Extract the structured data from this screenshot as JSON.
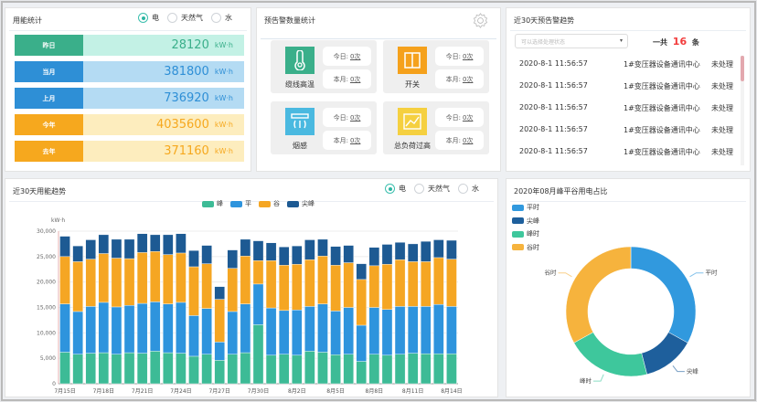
{
  "energy": {
    "title": "用能统计",
    "radios": [
      "电",
      "天然气",
      "水"
    ],
    "selected": "电",
    "rows": [
      {
        "label": "昨日",
        "value": "28120",
        "unit": "kW·h",
        "label_color": "#3aaf8a",
        "bg": "#c3f1e5",
        "color": "#3aaf8a"
      },
      {
        "label": "当月",
        "value": "381800",
        "unit": "kW·h",
        "label_color": "#2e8fd6",
        "bg": "#b4dbf3",
        "color": "#2e8fd6"
      },
      {
        "label": "上月",
        "value": "736920",
        "unit": "kW·h",
        "label_color": "#2e8fd6",
        "bg": "#b4dbf3",
        "color": "#2e8fd6"
      },
      {
        "label": "今年",
        "value": "4035600",
        "unit": "kW·h",
        "label_color": "#f6a81e",
        "bg": "#fdedbe",
        "color": "#f6a81e"
      },
      {
        "label": "去年",
        "value": "371160",
        "unit": "kW·h",
        "label_color": "#f6a81e",
        "bg": "#fdedbe",
        "color": "#f6a81e"
      }
    ]
  },
  "alarm_stats": {
    "title": "预告警数量统计",
    "today_label": "今日:",
    "month_label": "本月:",
    "cards": [
      {
        "name": "缆线高温",
        "icon": "thermometer-icon",
        "color": "#3aaf8a",
        "today": "0次",
        "month": "0次"
      },
      {
        "name": "开关",
        "icon": "switch-icon",
        "color": "#f5a11c",
        "today": "0次",
        "month": "0次"
      },
      {
        "name": "烟感",
        "icon": "smoke-detector-icon",
        "color": "#4ab9e0",
        "today": "0次",
        "month": "0次"
      },
      {
        "name": "总负荷过高",
        "icon": "load-chart-icon",
        "color": "#f5d040",
        "today": "0次",
        "month": "0次"
      }
    ]
  },
  "alarm_trend": {
    "title": "近30天预告警趋势",
    "select_placeholder": "可以选择处理状态",
    "total_prefix": "一共",
    "total": "16",
    "total_suffix": "条",
    "rows": [
      {
        "time": "2020-8-1 11:56:57",
        "device": "1#变压器设备通讯中心",
        "status": "未处理"
      },
      {
        "time": "2020-8-1 11:56:57",
        "device": "1#变压器设备通讯中心",
        "status": "未处理"
      },
      {
        "time": "2020-8-1 11:56:57",
        "device": "1#变压器设备通讯中心",
        "status": "未处理"
      },
      {
        "time": "2020-8-1 11:56:57",
        "device": "1#变压器设备通讯中心",
        "status": "未处理"
      },
      {
        "time": "2020-8-1 11:56:57",
        "device": "1#变压器设备通讯中心",
        "status": "未处理"
      }
    ]
  },
  "trend": {
    "title": "近30天用能趋势",
    "radios": [
      "电",
      "天然气",
      "水"
    ],
    "selected": "电"
  },
  "ratio": {
    "title": "2020年08月峰平谷用电占比"
  },
  "chart_data": [
    {
      "type": "bar",
      "stacked": true,
      "ylabel": "kW·h",
      "ylim": [
        0,
        30000
      ],
      "yticks": [
        "0",
        "5,000",
        "10,000",
        "15,000",
        "20,000",
        "25,000",
        "30,000"
      ],
      "grid": true,
      "legend_placement": "top",
      "categories": [
        "7月15日",
        "7月16日",
        "7月17日",
        "7月18日",
        "7月19日",
        "7月20日",
        "7月21日",
        "7月22日",
        "7月23日",
        "7月24日",
        "7月25日",
        "7月26日",
        "7月27日",
        "7月28日",
        "7月29日",
        "7月30日",
        "7月31日",
        "8月1日",
        "8月2日",
        "8月3日",
        "8月4日",
        "8月5日",
        "8月6日",
        "8月7日",
        "8月8日",
        "8月9日",
        "8月10日",
        "8月11日",
        "8月12日",
        "8月13日",
        "8月14日"
      ],
      "xtick_labels": [
        "7月15日",
        "7月18日",
        "7月21日",
        "7月24日",
        "7月27日",
        "7月30日",
        "8月2日",
        "8月5日",
        "8月8日",
        "8月11日",
        "8月14日"
      ],
      "series": [
        {
          "name": "峰",
          "color": "#3dbb96",
          "values": [
            6200,
            5800,
            6000,
            6100,
            5800,
            6100,
            6000,
            6400,
            6100,
            6000,
            5400,
            5800,
            4600,
            5800,
            6100,
            11600,
            5600,
            5800,
            5600,
            6400,
            6200,
            5700,
            5800,
            4400,
            5800,
            5600,
            5800,
            6000,
            5900,
            5900,
            5900
          ]
        },
        {
          "name": "平",
          "color": "#2e94dd",
          "values": [
            9500,
            8400,
            9200,
            9900,
            9300,
            9300,
            9800,
            9700,
            9600,
            10000,
            8000,
            9000,
            3600,
            8400,
            9600,
            8000,
            9300,
            8600,
            8900,
            8800,
            9500,
            8600,
            9200,
            7100,
            9200,
            9000,
            9400,
            9200,
            9300,
            9700,
            9300
          ]
        },
        {
          "name": "谷",
          "color": "#f5a623",
          "values": [
            9300,
            9800,
            9300,
            9600,
            9600,
            9200,
            10000,
            9900,
            9700,
            9700,
            9600,
            8800,
            8400,
            8500,
            9400,
            4600,
            9300,
            8900,
            9000,
            9200,
            9400,
            9000,
            8800,
            9000,
            8200,
            8900,
            9200,
            8800,
            8800,
            9200,
            9300
          ]
        },
        {
          "name": "尖峰",
          "color": "#1d5a93",
          "values": [
            4000,
            3100,
            3800,
            3700,
            3700,
            3800,
            3700,
            3300,
            3900,
            3800,
            3200,
            3600,
            2500,
            3600,
            3300,
            3900,
            3500,
            3600,
            3600,
            3900,
            3300,
            3700,
            3400,
            3100,
            3600,
            3900,
            3400,
            3500,
            4000,
            3500,
            3700
          ]
        }
      ]
    },
    {
      "type": "pie",
      "donut": true,
      "legend_placement": "top-left",
      "slices": [
        {
          "name": "平时",
          "value": 33,
          "color": "#3199de"
        },
        {
          "name": "尖峰",
          "value": 13,
          "color": "#1e5f9c"
        },
        {
          "name": "峰时",
          "value": 21,
          "color": "#3ec79c"
        },
        {
          "name": "谷时",
          "value": 33,
          "color": "#f6b33d"
        }
      ]
    }
  ]
}
